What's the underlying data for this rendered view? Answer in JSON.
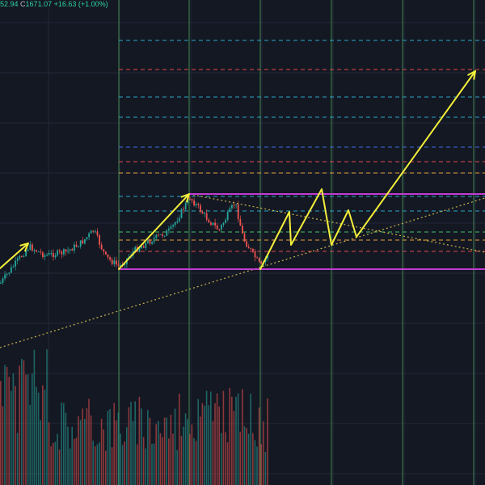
{
  "ohlc": {
    "open_fragment": "52.94",
    "close_label": "C",
    "close_value": "1671.07",
    "change": "+16.63",
    "change_pct": "(+1.00%)"
  },
  "colors": {
    "background": "#141823",
    "grid": "#222838",
    "green_vertical": "#4fae5a",
    "candle_up": "#26a69a",
    "candle_down": "#ef5350",
    "projection": "#f3ef3a",
    "box": "#c23bd4",
    "trendline": "#c7b24a",
    "level_cyan": "#2aa6c8",
    "level_red": "#e0474c",
    "level_blue": "#3d6ee0",
    "level_orange": "#e8a23a",
    "level_green": "#3fbf6a"
  },
  "chart_data": {
    "type": "candlestick",
    "price_levels": [
      {
        "name": "level-cyan-1",
        "color": "cyan"
      },
      {
        "name": "level-red-1",
        "color": "red"
      },
      {
        "name": "level-cyan-2",
        "color": "cyan"
      },
      {
        "name": "level-cyan-3",
        "color": "cyan"
      },
      {
        "name": "level-blue-1",
        "color": "blue"
      },
      {
        "name": "level-red-2",
        "color": "red"
      },
      {
        "name": "level-orange-1",
        "color": "orange"
      },
      {
        "name": "level-cyan-4",
        "color": "cyan"
      },
      {
        "name": "level-cyan-5",
        "color": "cyan"
      },
      {
        "name": "level-green-1",
        "color": "green"
      },
      {
        "name": "level-orange-2",
        "color": "orange"
      },
      {
        "name": "level-red-3",
        "color": "red"
      }
    ],
    "grid": true,
    "volume_pane": true
  }
}
